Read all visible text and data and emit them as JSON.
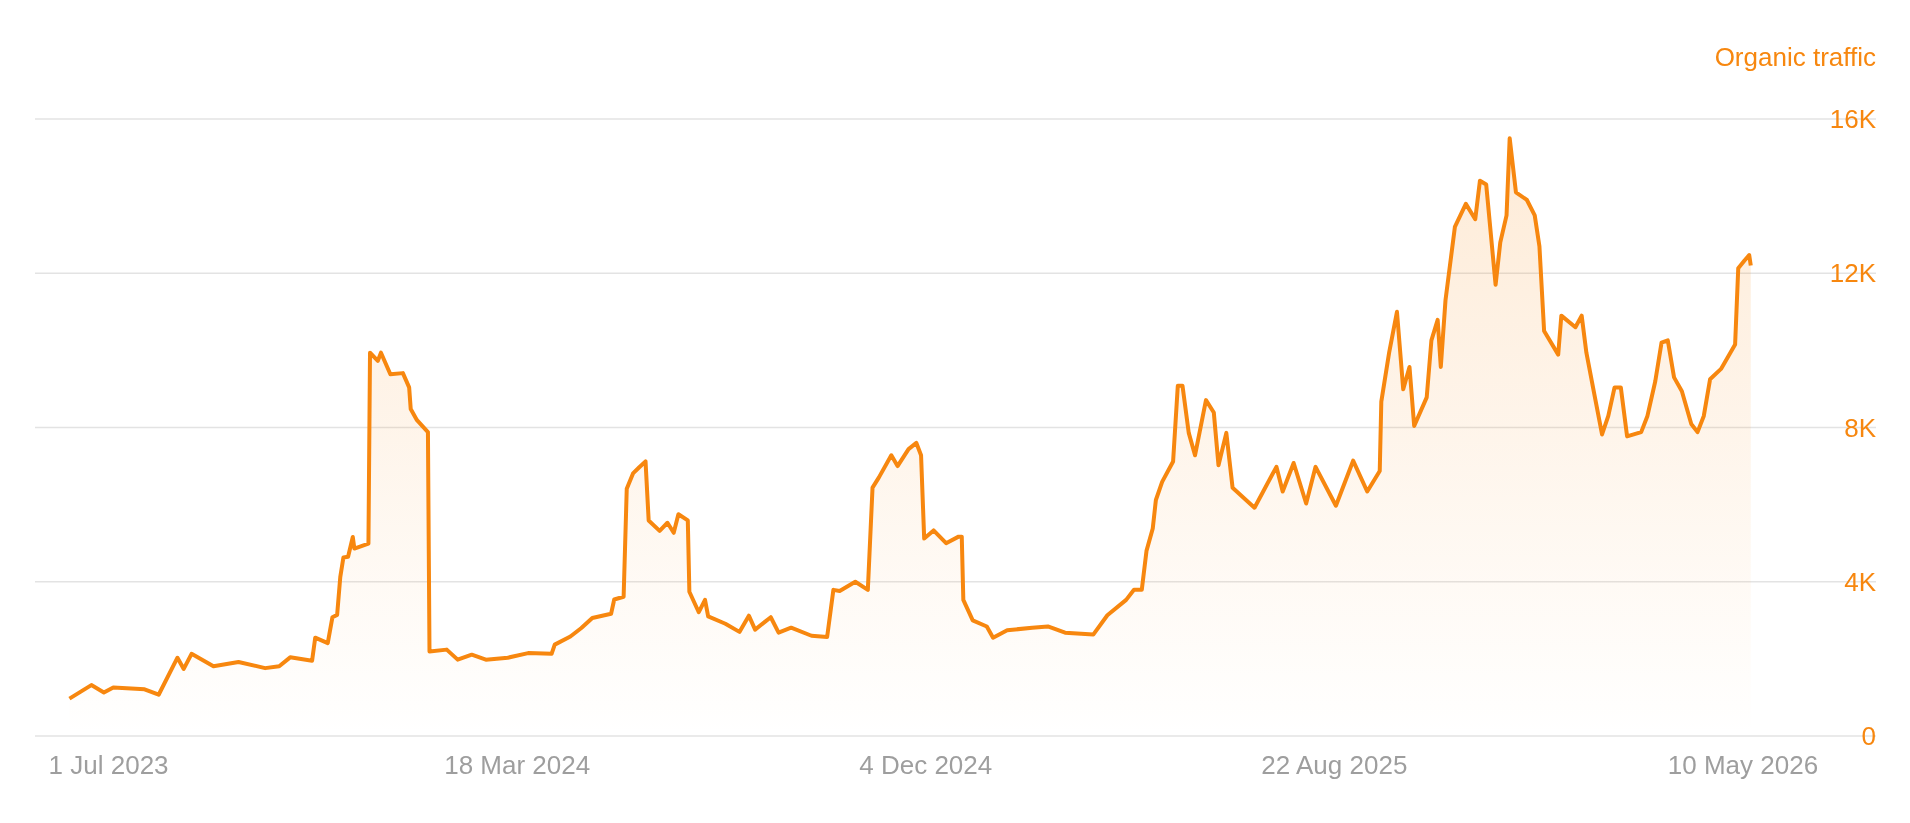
{
  "chart_data": {
    "type": "area",
    "ylabel": "Organic traffic",
    "x": [
      "2023-06-06",
      "2023-06-20",
      "2023-06-28",
      "2023-07-04",
      "2023-07-24",
      "2023-08-02",
      "2023-08-14",
      "2023-08-18",
      "2023-08-23",
      "2023-09-06",
      "2023-09-22",
      "2023-10-09",
      "2023-10-18",
      "2023-10-25",
      "2023-11-08",
      "2023-11-10",
      "2023-11-18",
      "2023-11-21",
      "2023-11-24",
      "2023-11-26",
      "2023-11-28",
      "2023-12-01",
      "2023-12-04",
      "2023-12-05",
      "2023-12-14",
      "2023-12-15",
      "2023-12-20",
      "2023-12-22",
      "2023-12-28",
      "2024-01-05",
      "2024-01-09",
      "2024-01-10",
      "2024-01-14",
      "2024-01-21",
      "2024-01-22",
      "2024-02-02",
      "2024-02-09",
      "2024-02-18",
      "2024-02-27",
      "2024-03-12",
      "2024-03-25",
      "2024-04-09",
      "2024-04-11",
      "2024-04-21",
      "2024-04-28",
      "2024-05-05",
      "2024-05-17",
      "2024-05-19",
      "2024-05-25",
      "2024-05-27",
      "2024-05-31",
      "2024-06-04",
      "2024-06-08",
      "2024-06-10",
      "2024-06-17",
      "2024-06-22",
      "2024-06-26",
      "2024-06-29",
      "2024-07-05",
      "2024-07-06",
      "2024-07-12",
      "2024-07-16",
      "2024-07-18",
      "2024-07-29",
      "2024-08-07",
      "2024-08-13",
      "2024-08-17",
      "2024-08-27",
      "2024-09-01",
      "2024-09-09",
      "2024-09-22",
      "2024-10-02",
      "2024-10-06",
      "2024-10-10",
      "2024-10-20",
      "2024-10-28",
      "2024-10-31",
      "2024-11-04",
      "2024-11-12",
      "2024-11-16",
      "2024-11-23",
      "2024-11-28",
      "2024-12-01",
      "2024-12-03",
      "2024-12-09",
      "2024-12-17",
      "2024-12-25",
      "2024-12-27",
      "2024-12-28",
      "2025-01-03",
      "2025-01-12",
      "2025-01-16",
      "2025-01-25",
      "2025-02-10",
      "2025-02-20",
      "2025-03-03",
      "2025-03-21",
      "2025-03-30",
      "2025-04-11",
      "2025-04-16",
      "2025-04-21",
      "2025-04-24",
      "2025-04-28",
      "2025-04-30",
      "2025-05-04",
      "2025-05-11",
      "2025-05-14",
      "2025-05-17",
      "2025-05-21",
      "2025-05-25",
      "2025-06-01",
      "2025-06-06",
      "2025-06-09",
      "2025-06-14",
      "2025-06-18",
      "2025-07-02",
      "2025-07-16",
      "2025-07-20",
      "2025-07-27",
      "2025-08-04",
      "2025-08-10",
      "2025-08-23",
      "2025-09-03",
      "2025-09-12",
      "2025-09-20",
      "2025-09-21",
      "2025-09-26",
      "2025-10-01",
      "2025-10-05",
      "2025-10-09",
      "2025-10-12",
      "2025-10-20",
      "2025-10-23",
      "2025-10-27",
      "2025-10-29",
      "2025-11-01",
      "2025-11-07",
      "2025-11-14",
      "2025-11-20",
      "2025-11-23",
      "2025-11-27",
      "2025-12-03",
      "2025-12-06",
      "2025-12-10",
      "2025-12-12",
      "2025-12-16",
      "2025-12-23",
      "2025-12-28",
      "2025-12-31",
      "2026-01-03",
      "2026-01-12",
      "2026-01-14",
      "2026-01-23",
      "2026-01-27",
      "2026-01-30",
      "2026-02-04",
      "2026-02-09",
      "2026-02-13",
      "2026-02-17",
      "2026-02-21",
      "2026-02-25",
      "2026-03-06",
      "2026-03-10",
      "2026-03-15",
      "2026-03-19",
      "2026-03-23",
      "2026-03-27",
      "2026-04-01",
      "2026-04-07",
      "2026-04-11",
      "2026-04-15",
      "2026-04-19",
      "2026-04-26",
      "2026-05-05",
      "2026-05-07",
      "2026-05-11",
      "2026-05-14",
      "2026-05-15"
    ],
    "series": [
      {
        "color": "#f7870f",
        "values": [
          970,
          1320,
          1130,
          1260,
          1210,
          1070,
          2030,
          1740,
          2130,
          1810,
          1920,
          1760,
          1810,
          2040,
          1950,
          2550,
          2410,
          3080,
          3140,
          4120,
          4630,
          4650,
          5160,
          4860,
          4990,
          9940,
          9730,
          9940,
          9380,
          9410,
          9040,
          8480,
          8190,
          7880,
          2190,
          2240,
          1980,
          2110,
          1980,
          2030,
          2150,
          2130,
          2370,
          2580,
          2800,
          3060,
          3170,
          3540,
          3610,
          6410,
          6810,
          6970,
          7120,
          5590,
          5320,
          5530,
          5270,
          5750,
          5590,
          3740,
          3210,
          3530,
          3100,
          2910,
          2700,
          3120,
          2760,
          3080,
          2680,
          2810,
          2600,
          2570,
          3790,
          3760,
          4000,
          3790,
          6440,
          6700,
          7280,
          7000,
          7440,
          7600,
          7280,
          5120,
          5330,
          5000,
          5170,
          5170,
          3530,
          3000,
          2840,
          2550,
          2740,
          2810,
          2840,
          2680,
          2630,
          3130,
          3530,
          3790,
          3790,
          4800,
          5380,
          6120,
          6590,
          7120,
          9080,
          9080,
          7860,
          7280,
          8710,
          8390,
          7020,
          7860,
          6440,
          5920,
          6980,
          6340,
          7080,
          6030,
          6980,
          5970,
          7140,
          6340,
          6870,
          8670,
          9940,
          11000,
          8990,
          9570,
          8040,
          8780,
          10260,
          10790,
          9570,
          11300,
          13200,
          13800,
          13400,
          14400,
          14300,
          11700,
          12800,
          13500,
          15500,
          14100,
          13900,
          13500,
          12700,
          10500,
          9890,
          10900,
          10600,
          10900,
          9940,
          8880,
          7820,
          8300,
          9040,
          9040,
          7770,
          7880,
          8300,
          9200,
          10200,
          10260,
          9300,
          8940,
          8090,
          7880,
          8300,
          9250,
          9520,
          10150,
          12130,
          12330,
          12470,
          12200
        ]
      }
    ],
    "xlim": [
      "2023-05-15",
      "2026-08-03"
    ],
    "xticks": [
      {
        "value": "2023-07-01",
        "label": "1 Jul 2023"
      },
      {
        "value": "2024-03-18",
        "label": "18 Mar 2024"
      },
      {
        "value": "2024-12-04",
        "label": "4 Dec 2024"
      },
      {
        "value": "2025-08-22",
        "label": "22 Aug 2025"
      },
      {
        "value": "2026-05-10",
        "label": "10 May 2026"
      }
    ],
    "ylim": [
      0,
      16000
    ],
    "yticks": [
      0,
      {
        "value": 4000,
        "label": "4K"
      },
      {
        "value": 8000,
        "label": "8K"
      },
      {
        "value": 12000,
        "label": "12K"
      },
      {
        "value": 16000,
        "label": "16K"
      }
    ],
    "grid": "y"
  }
}
